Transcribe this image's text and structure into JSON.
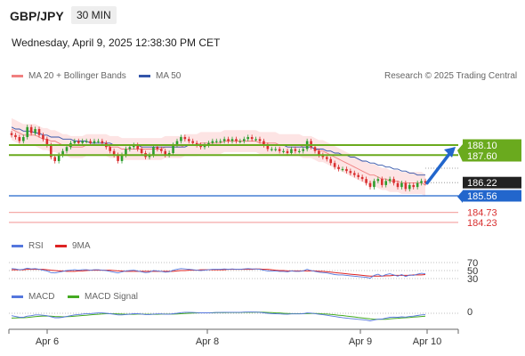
{
  "header": {
    "symbol": "GBP/JPY",
    "timeframe": "30 MIN",
    "timestamp": "Wednesday, April 9, 2025 12:38:30 PM CET",
    "credit": "Research © 2025 Trading Central"
  },
  "legend": {
    "ma20": "MA 20 + Bollinger Bands",
    "ma50": "MA 50",
    "rsi": "RSI",
    "rsi_signal": "9MA",
    "macd": "MACD",
    "macd_signal": "MACD Signal"
  },
  "colors": {
    "resistance": "#6aaa1e",
    "support": "#2266cc",
    "ma20": "#f08080",
    "ma50": "#3355aa",
    "bollinger_fill": "#fde4e4",
    "candle_up": "#2e9e2e",
    "candle_down": "#d93030",
    "target_label": "#f08080",
    "rsi": "#5577dd",
    "rsi_ma": "#dd2222",
    "macd": "#5577dd",
    "macd_signal": "#44aa22"
  },
  "chart_data": {
    "type": "candlestick",
    "x_ticks": [
      "Apr 6",
      "Apr 8",
      "Apr 9",
      "Apr 10"
    ],
    "price_scale": {
      "ylim": [
        183.9,
        189.6
      ]
    },
    "levels": [
      {
        "label": "188.10",
        "value": 188.1,
        "kind": "resistance"
      },
      {
        "label": "187.60",
        "value": 187.6,
        "kind": "resistance"
      },
      {
        "label": "186.22",
        "value": 186.22,
        "kind": "current"
      },
      {
        "label": "185.56",
        "value": 185.56,
        "kind": "support"
      },
      {
        "label": "184.73",
        "value": 184.73,
        "kind": "target"
      },
      {
        "label": "184.23",
        "value": 184.23,
        "kind": "target"
      }
    ],
    "forecast_arrow": {
      "from": 186.2,
      "to": 188.1
    },
    "close": [
      188.6,
      188.5,
      188.3,
      188.5,
      189.0,
      188.7,
      188.9,
      188.6,
      188.4,
      188.1,
      187.5,
      187.3,
      187.6,
      187.8,
      188.0,
      188.2,
      188.3,
      188.2,
      188.3,
      188.3,
      188.2,
      188.3,
      188.3,
      188.2,
      188.0,
      187.8,
      187.6,
      187.3,
      187.6,
      187.9,
      188.0,
      188.1,
      187.9,
      187.7,
      187.5,
      187.6,
      188.0,
      187.9,
      187.8,
      187.6,
      187.7,
      188.1,
      188.3,
      188.5,
      188.4,
      188.3,
      188.2,
      188.1,
      188.0,
      188.1,
      188.2,
      188.3,
      188.3,
      188.3,
      188.4,
      188.3,
      188.4,
      188.3,
      188.3,
      188.4,
      188.5,
      188.4,
      188.4,
      188.3,
      188.1,
      187.9,
      187.9,
      187.9,
      187.8,
      187.8,
      187.7,
      187.9,
      187.8,
      187.8,
      187.9,
      188.3,
      188.0,
      187.8,
      187.6,
      187.5,
      187.4,
      187.2,
      187.0,
      186.9,
      186.9,
      186.8,
      186.7,
      186.6,
      186.5,
      186.4,
      186.2,
      186.0,
      186.3,
      186.4,
      186.1,
      186.3,
      186.4,
      186.2,
      186.0,
      186.2,
      185.9,
      186.1,
      186.0,
      186.2,
      186.3,
      186.2
    ],
    "ma20": [
      188.9,
      188.8,
      188.7,
      188.6,
      188.6,
      188.6,
      188.6,
      188.5,
      188.4,
      188.4,
      188.3,
      188.3,
      188.2,
      188.1,
      188.1,
      188.0,
      188.0,
      188.0,
      188.0,
      188.1,
      188.1,
      188.1,
      188.1,
      188.1,
      188.1,
      188.0,
      188.0,
      188.0,
      187.9,
      187.9,
      187.9,
      187.9,
      187.9,
      187.9,
      187.9,
      187.9,
      187.9,
      187.9,
      187.9,
      188.0,
      188.0,
      188.0,
      188.0,
      188.0,
      188.1,
      188.1,
      188.1,
      188.1,
      188.2,
      188.2,
      188.2,
      188.2,
      188.2,
      188.2,
      188.3,
      188.3,
      188.3,
      188.3,
      188.3,
      188.3,
      188.3,
      188.3,
      188.3,
      188.2,
      188.2,
      188.2,
      188.2,
      188.2,
      188.1,
      188.1,
      188.1,
      188.1,
      188.1,
      188.1,
      188.0,
      188.0,
      188.0,
      187.9,
      187.8,
      187.8,
      187.7,
      187.6,
      187.5,
      187.4,
      187.3,
      187.2,
      187.1,
      187.0,
      186.9,
      186.8,
      186.7,
      186.6,
      186.6,
      186.5,
      186.4,
      186.4,
      186.3,
      186.3,
      186.3,
      186.2,
      186.2,
      186.2,
      186.2,
      186.2,
      186.2,
      186.1
    ],
    "ma50": [
      189.0,
      188.9,
      188.9,
      188.8,
      188.8,
      188.8,
      188.7,
      188.7,
      188.6,
      188.6,
      188.5,
      188.5,
      188.5,
      188.4,
      188.4,
      188.4,
      188.3,
      188.3,
      188.3,
      188.3,
      188.2,
      188.2,
      188.2,
      188.2,
      188.2,
      188.2,
      188.1,
      188.1,
      188.1,
      188.1,
      188.1,
      188.1,
      188.1,
      188.0,
      188.0,
      188.0,
      188.0,
      188.0,
      188.0,
      188.0,
      188.0,
      188.0,
      188.0,
      188.0,
      188.0,
      188.1,
      188.1,
      188.1,
      188.1,
      188.1,
      188.1,
      188.1,
      188.1,
      188.1,
      188.1,
      188.1,
      188.1,
      188.1,
      188.1,
      188.1,
      188.1,
      188.1,
      188.1,
      188.1,
      188.1,
      188.1,
      188.1,
      188.1,
      188.1,
      188.1,
      188.0,
      188.0,
      188.0,
      188.0,
      188.0,
      188.0,
      188.0,
      187.9,
      187.9,
      187.9,
      187.8,
      187.8,
      187.7,
      187.7,
      187.6,
      187.6,
      187.5,
      187.5,
      187.4,
      187.3,
      187.3,
      187.2,
      187.2,
      187.1,
      187.1,
      187.0,
      187.0,
      186.9,
      186.9,
      186.8,
      186.8,
      186.7,
      186.7,
      186.6,
      186.6,
      186.6
    ],
    "rsi": {
      "ylabels": [
        "70",
        "50",
        "30"
      ],
      "values": [
        55,
        54,
        52,
        53,
        56,
        54,
        55,
        53,
        51,
        49,
        45,
        44,
        46,
        48,
        50,
        51,
        52,
        51,
        52,
        52,
        51,
        52,
        52,
        51,
        50,
        48,
        46,
        44,
        47,
        49,
        50,
        51,
        49,
        47,
        45,
        46,
        50,
        49,
        48,
        46,
        47,
        51,
        53,
        55,
        54,
        53,
        52,
        51,
        50,
        51,
        52,
        53,
        53,
        53,
        54,
        53,
        54,
        53,
        53,
        54,
        55,
        54,
        54,
        53,
        51,
        49,
        49,
        49,
        48,
        48,
        47,
        49,
        48,
        48,
        49,
        53,
        50,
        48,
        46,
        45,
        44,
        42,
        40,
        39,
        39,
        38,
        37,
        36,
        35,
        34,
        33,
        31,
        38,
        41,
        36,
        40,
        42,
        39,
        36,
        40,
        35,
        39,
        38,
        41,
        43,
        42
      ],
      "ma9": [
        52,
        52,
        52,
        52,
        53,
        53,
        53,
        53,
        53,
        52,
        51,
        50,
        49,
        49,
        48,
        48,
        48,
        49,
        49,
        50,
        51,
        51,
        51,
        51,
        51,
        51,
        50,
        49,
        49,
        48,
        48,
        48,
        48,
        48,
        48,
        48,
        48,
        48,
        48,
        48,
        48,
        48,
        49,
        50,
        50,
        51,
        51,
        51,
        52,
        52,
        52,
        52,
        52,
        52,
        52,
        53,
        53,
        53,
        53,
        53,
        53,
        53,
        54,
        54,
        53,
        53,
        52,
        51,
        50,
        50,
        49,
        49,
        49,
        49,
        49,
        49,
        49,
        49,
        48,
        48,
        47,
        46,
        45,
        44,
        43,
        42,
        41,
        40,
        39,
        38,
        37,
        36,
        36,
        36,
        36,
        37,
        37,
        38,
        38,
        38,
        38,
        38,
        39,
        39,
        39,
        40
      ]
    },
    "macd": {
      "ylabels": [
        "0"
      ],
      "values": [
        -0.15,
        -0.2,
        -0.25,
        -0.25,
        -0.18,
        -0.15,
        -0.1,
        -0.1,
        -0.12,
        -0.15,
        -0.22,
        -0.28,
        -0.28,
        -0.25,
        -0.2,
        -0.15,
        -0.1,
        -0.08,
        -0.05,
        -0.02,
        -0.02,
        0.0,
        0.02,
        0.02,
        0.0,
        -0.03,
        -0.06,
        -0.1,
        -0.1,
        -0.08,
        -0.05,
        -0.03,
        -0.03,
        -0.05,
        -0.08,
        -0.08,
        -0.05,
        -0.04,
        -0.04,
        -0.06,
        -0.06,
        -0.03,
        0.0,
        0.04,
        0.06,
        0.06,
        0.05,
        0.04,
        0.03,
        0.03,
        0.03,
        0.04,
        0.05,
        0.05,
        0.06,
        0.06,
        0.06,
        0.06,
        0.06,
        0.07,
        0.08,
        0.08,
        0.07,
        0.06,
        0.03,
        0.0,
        -0.02,
        -0.03,
        -0.04,
        -0.05,
        -0.06,
        -0.04,
        -0.04,
        -0.04,
        -0.03,
        0.02,
        0.01,
        -0.02,
        -0.06,
        -0.09,
        -0.12,
        -0.16,
        -0.2,
        -0.24,
        -0.27,
        -0.3,
        -0.33,
        -0.35,
        -0.38,
        -0.4,
        -0.43,
        -0.47,
        -0.42,
        -0.37,
        -0.36,
        -0.3,
        -0.25,
        -0.24,
        -0.25,
        -0.22,
        -0.24,
        -0.2,
        -0.18,
        -0.14,
        -0.1,
        -0.09
      ],
      "signal": [
        -0.3,
        -0.29,
        -0.28,
        -0.28,
        -0.26,
        -0.24,
        -0.21,
        -0.19,
        -0.17,
        -0.17,
        -0.18,
        -0.2,
        -0.21,
        -0.22,
        -0.21,
        -0.2,
        -0.18,
        -0.16,
        -0.14,
        -0.12,
        -0.1,
        -0.08,
        -0.06,
        -0.04,
        -0.03,
        -0.03,
        -0.03,
        -0.04,
        -0.05,
        -0.06,
        -0.06,
        -0.06,
        -0.05,
        -0.05,
        -0.06,
        -0.06,
        -0.06,
        -0.06,
        -0.05,
        -0.05,
        -0.05,
        -0.05,
        -0.04,
        -0.03,
        -0.01,
        0.0,
        0.01,
        0.02,
        0.03,
        0.03,
        0.03,
        0.03,
        0.04,
        0.04,
        0.04,
        0.05,
        0.05,
        0.05,
        0.05,
        0.06,
        0.06,
        0.06,
        0.07,
        0.07,
        0.06,
        0.05,
        0.04,
        0.03,
        0.02,
        0.0,
        -0.01,
        -0.02,
        -0.03,
        -0.03,
        -0.03,
        -0.02,
        -0.01,
        -0.01,
        -0.02,
        -0.04,
        -0.05,
        -0.07,
        -0.09,
        -0.12,
        -0.14,
        -0.17,
        -0.2,
        -0.23,
        -0.26,
        -0.29,
        -0.32,
        -0.35,
        -0.37,
        -0.38,
        -0.38,
        -0.37,
        -0.35,
        -0.33,
        -0.31,
        -0.29,
        -0.28,
        -0.26,
        -0.24,
        -0.22,
        -0.2,
        -0.18
      ]
    }
  }
}
